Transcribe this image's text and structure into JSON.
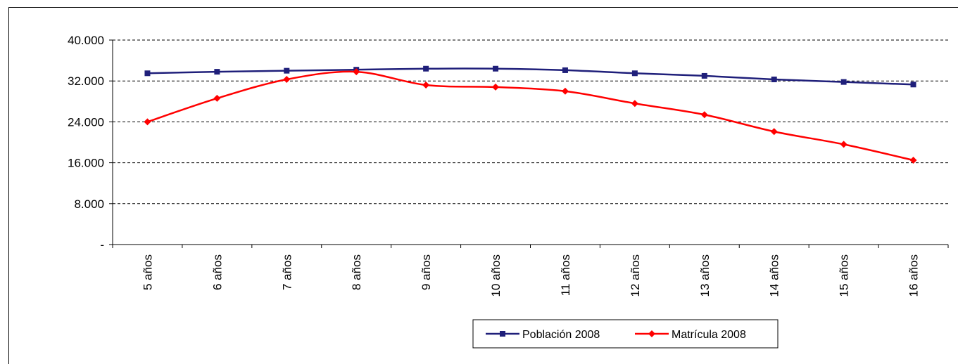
{
  "chart_data": {
    "type": "line",
    "categories": [
      "5 años",
      "6 años",
      "7 años",
      "8 años",
      "9 años",
      "10 años",
      "11 años",
      "12 años",
      "13 años",
      "14 años",
      "15 años",
      "16 años"
    ],
    "series": [
      {
        "name": "Población 2008",
        "color": "#1F1F7A",
        "marker": "square",
        "values": [
          33500,
          33800,
          34000,
          34200,
          34400,
          34400,
          34100,
          33500,
          33000,
          32300,
          31800,
          31300
        ]
      },
      {
        "name": "Matrícula 2008",
        "color": "#FF0000",
        "marker": "diamond",
        "values": [
          24000,
          28600,
          32300,
          33800,
          31200,
          30800,
          30000,
          27600,
          25400,
          22100,
          19600,
          16500
        ]
      }
    ],
    "ylim": [
      0,
      40000
    ],
    "yticks": [
      0,
      8000,
      16000,
      24000,
      32000,
      40000
    ],
    "ytick_labels": [
      "-",
      "8.000",
      "16.000",
      "24.000",
      "32.000",
      "40.000"
    ],
    "grid": "horizontal-dashed",
    "legend_position": "bottom-right",
    "title": "",
    "xlabel": "",
    "ylabel": ""
  }
}
